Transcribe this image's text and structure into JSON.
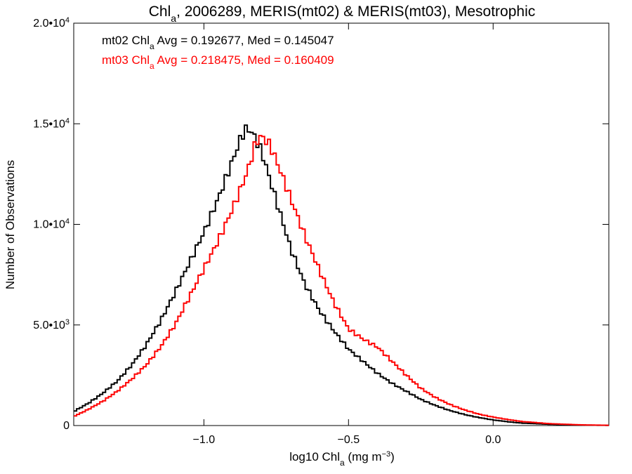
{
  "chart_data": {
    "type": "line",
    "title": {
      "pre": "Chl",
      "sub": "a",
      "post": ", 2006289, MERIS(mt02) & MERIS(mt03), Mesotrophic"
    },
    "xlabel": {
      "pre": "log10 Chl",
      "sub": "a",
      "post": " (mg m",
      "sup": "−3",
      "end": ")"
    },
    "ylabel": "Number of Observations",
    "xlim": [
      -1.45,
      0.4
    ],
    "ylim": [
      0,
      20000
    ],
    "x_ticks": [
      -1.0,
      -0.5,
      0.0
    ],
    "x_tick_labels": [
      "−1.0",
      "−0.5",
      "0.0"
    ],
    "y_ticks": [
      0,
      5000,
      10000,
      15000,
      20000
    ],
    "y_tick_labels": [
      {
        "main": "0",
        "sup": ""
      },
      {
        "main": "5.0•10",
        "sup": "3"
      },
      {
        "main": "1.0•10",
        "sup": "4"
      },
      {
        "main": "1.5•10",
        "sup": "4"
      },
      {
        "main": "2.0•10",
        "sup": "4"
      }
    ],
    "grid": false,
    "legend_position": "top-left",
    "series": [
      {
        "name": "mt02",
        "color": "#000000",
        "legend": {
          "pre": "mt02 Chl",
          "sub": "a",
          "post": " Avg = 0.192677, Med = 0.145047"
        },
        "x": [
          -1.45,
          -1.4,
          -1.35,
          -1.3,
          -1.25,
          -1.2,
          -1.15,
          -1.1,
          -1.05,
          -1.0,
          -0.95,
          -0.9,
          -0.87,
          -0.85,
          -0.83,
          -0.8,
          -0.75,
          -0.7,
          -0.65,
          -0.6,
          -0.55,
          -0.5,
          -0.45,
          -0.4,
          -0.35,
          -0.3,
          -0.25,
          -0.2,
          -0.15,
          -0.1,
          -0.05,
          0.0,
          0.05,
          0.1,
          0.2,
          0.3,
          0.4
        ],
        "y": [
          700,
          1100,
          1600,
          2200,
          3000,
          4000,
          5200,
          6600,
          8100,
          9600,
          11300,
          13200,
          14400,
          14800,
          14500,
          13600,
          11200,
          8800,
          7000,
          5700,
          4700,
          3800,
          3200,
          2600,
          2100,
          1700,
          1300,
          1000,
          750,
          550,
          400,
          280,
          190,
          120,
          60,
          25,
          10
        ]
      },
      {
        "name": "mt03",
        "color": "#ff0000",
        "legend": {
          "pre": "mt03 Chl",
          "sub": "a",
          "post": " Avg = 0.218475, Med = 0.160409"
        },
        "x": [
          -1.45,
          -1.4,
          -1.35,
          -1.3,
          -1.25,
          -1.2,
          -1.15,
          -1.1,
          -1.05,
          -1.0,
          -0.95,
          -0.9,
          -0.85,
          -0.82,
          -0.8,
          -0.77,
          -0.75,
          -0.7,
          -0.65,
          -0.6,
          -0.55,
          -0.5,
          -0.45,
          -0.4,
          -0.35,
          -0.3,
          -0.25,
          -0.2,
          -0.15,
          -0.1,
          -0.05,
          0.0,
          0.05,
          0.1,
          0.2,
          0.3,
          0.4
        ],
        "y": [
          450,
          800,
          1200,
          1700,
          2300,
          3000,
          3900,
          5000,
          6400,
          7800,
          9200,
          10800,
          12600,
          14100,
          14400,
          13900,
          13200,
          11300,
          9400,
          7700,
          6100,
          4800,
          4300,
          3900,
          3200,
          2500,
          1850,
          1400,
          1050,
          780,
          570,
          420,
          300,
          200,
          90,
          35,
          12
        ]
      }
    ]
  }
}
